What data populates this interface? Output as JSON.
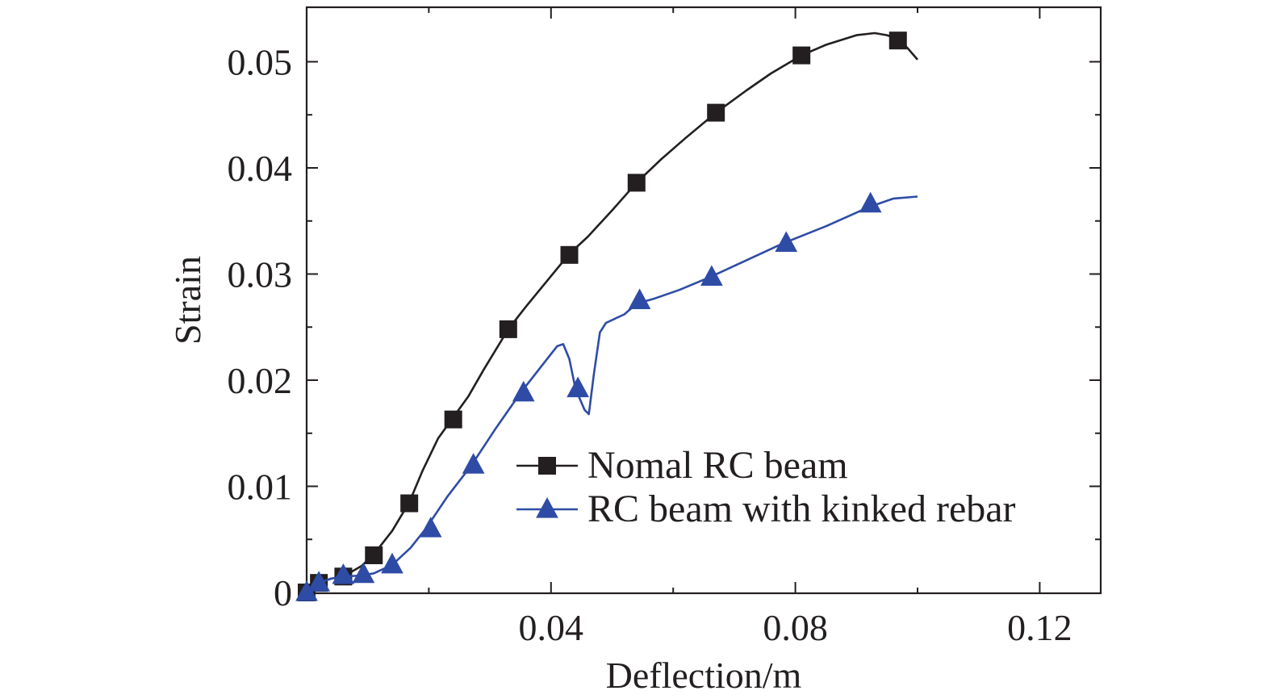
{
  "chart_data": {
    "type": "line",
    "title": "",
    "xlabel": "Deflection/m",
    "ylabel": "Strain",
    "xlim": [
      0,
      0.13
    ],
    "ylim": [
      0,
      0.055
    ],
    "x_ticks": [
      {
        "value": 0.04,
        "label": "0.04"
      },
      {
        "value": 0.08,
        "label": "0.08"
      },
      {
        "value": 0.12,
        "label": "0.12"
      }
    ],
    "y_ticks": [
      {
        "value": 0,
        "label": "0"
      },
      {
        "value": 0.01,
        "label": "0.01"
      },
      {
        "value": 0.02,
        "label": "0.02"
      },
      {
        "value": 0.03,
        "label": "0.03"
      },
      {
        "value": 0.04,
        "label": "0.04"
      },
      {
        "value": 0.05,
        "label": "0.05"
      }
    ],
    "grid": false,
    "legend_position": "bottom-right",
    "series": [
      {
        "name": "Nomal RC beam",
        "color": "#231f20",
        "marker": "square",
        "curve": [
          [
            0,
            0
          ],
          [
            0.001,
            0.0005
          ],
          [
            0.002,
            0.0009
          ],
          [
            0.004,
            0.0013
          ],
          [
            0.006,
            0.0015
          ],
          [
            0.009,
            0.0025
          ],
          [
            0.011,
            0.0036
          ],
          [
            0.014,
            0.0058
          ],
          [
            0.0168,
            0.0085
          ],
          [
            0.019,
            0.0115
          ],
          [
            0.0215,
            0.0145
          ],
          [
            0.024,
            0.0165
          ],
          [
            0.0265,
            0.0185
          ],
          [
            0.029,
            0.021
          ],
          [
            0.033,
            0.0248
          ],
          [
            0.036,
            0.027
          ],
          [
            0.04,
            0.0298
          ],
          [
            0.043,
            0.0319
          ],
          [
            0.046,
            0.0335
          ],
          [
            0.05,
            0.036
          ],
          [
            0.054,
            0.0386
          ],
          [
            0.058,
            0.0408
          ],
          [
            0.062,
            0.0428
          ],
          [
            0.067,
            0.0452
          ],
          [
            0.072,
            0.0473
          ],
          [
            0.076,
            0.0489
          ],
          [
            0.081,
            0.0506
          ],
          [
            0.085,
            0.0516
          ],
          [
            0.09,
            0.0525
          ],
          [
            0.093,
            0.0527
          ],
          [
            0.095,
            0.0525
          ],
          [
            0.097,
            0.0521
          ],
          [
            0.0985,
            0.0512
          ],
          [
            0.1,
            0.0502
          ]
        ],
        "markers": [
          [
            0,
            0
          ],
          [
            0.002,
            0.0009
          ],
          [
            0.006,
            0.0015
          ],
          [
            0.011,
            0.0035
          ],
          [
            0.0168,
            0.0084
          ],
          [
            0.024,
            0.0163
          ],
          [
            0.033,
            0.0248
          ],
          [
            0.043,
            0.0318
          ],
          [
            0.054,
            0.0386
          ],
          [
            0.067,
            0.0452
          ],
          [
            0.081,
            0.0506
          ],
          [
            0.0968,
            0.052
          ]
        ]
      },
      {
        "name": "RC beam with kinked rebar",
        "color": "#2e4ca6",
        "marker": "triangle",
        "curve": [
          [
            0,
            0
          ],
          [
            0.001,
            0.0005
          ],
          [
            0.002,
            0.0009
          ],
          [
            0.004,
            0.0013
          ],
          [
            0.006,
            0.0015
          ],
          [
            0.009,
            0.0016
          ],
          [
            0.011,
            0.0018
          ],
          [
            0.014,
            0.0026
          ],
          [
            0.017,
            0.0042
          ],
          [
            0.0195,
            0.006
          ],
          [
            0.023,
            0.009
          ],
          [
            0.027,
            0.012
          ],
          [
            0.031,
            0.0155
          ],
          [
            0.035,
            0.0188
          ],
          [
            0.038,
            0.021
          ],
          [
            0.041,
            0.0232
          ],
          [
            0.042,
            0.0234
          ],
          [
            0.043,
            0.022
          ],
          [
            0.044,
            0.0192
          ],
          [
            0.0455,
            0.0172
          ],
          [
            0.0462,
            0.0168
          ],
          [
            0.047,
            0.0205
          ],
          [
            0.048,
            0.0245
          ],
          [
            0.049,
            0.0254
          ],
          [
            0.052,
            0.0262
          ],
          [
            0.054,
            0.0272
          ],
          [
            0.057,
            0.0277
          ],
          [
            0.061,
            0.0285
          ],
          [
            0.066,
            0.0297
          ],
          [
            0.072,
            0.0313
          ],
          [
            0.078,
            0.0329
          ],
          [
            0.085,
            0.0345
          ],
          [
            0.092,
            0.0363
          ],
          [
            0.096,
            0.0371
          ],
          [
            0.1,
            0.0373
          ]
        ],
        "markers": [
          [
            0,
            0
          ],
          [
            0.002,
            0.0009
          ],
          [
            0.006,
            0.0016
          ],
          [
            0.0093,
            0.0017
          ],
          [
            0.014,
            0.0026
          ],
          [
            0.0203,
            0.006
          ],
          [
            0.0273,
            0.012
          ],
          [
            0.0355,
            0.0188
          ],
          [
            0.0444,
            0.0192
          ],
          [
            0.0545,
            0.0275
          ],
          [
            0.0663,
            0.0297
          ],
          [
            0.0785,
            0.0329
          ],
          [
            0.0923,
            0.0366
          ]
        ]
      }
    ]
  }
}
